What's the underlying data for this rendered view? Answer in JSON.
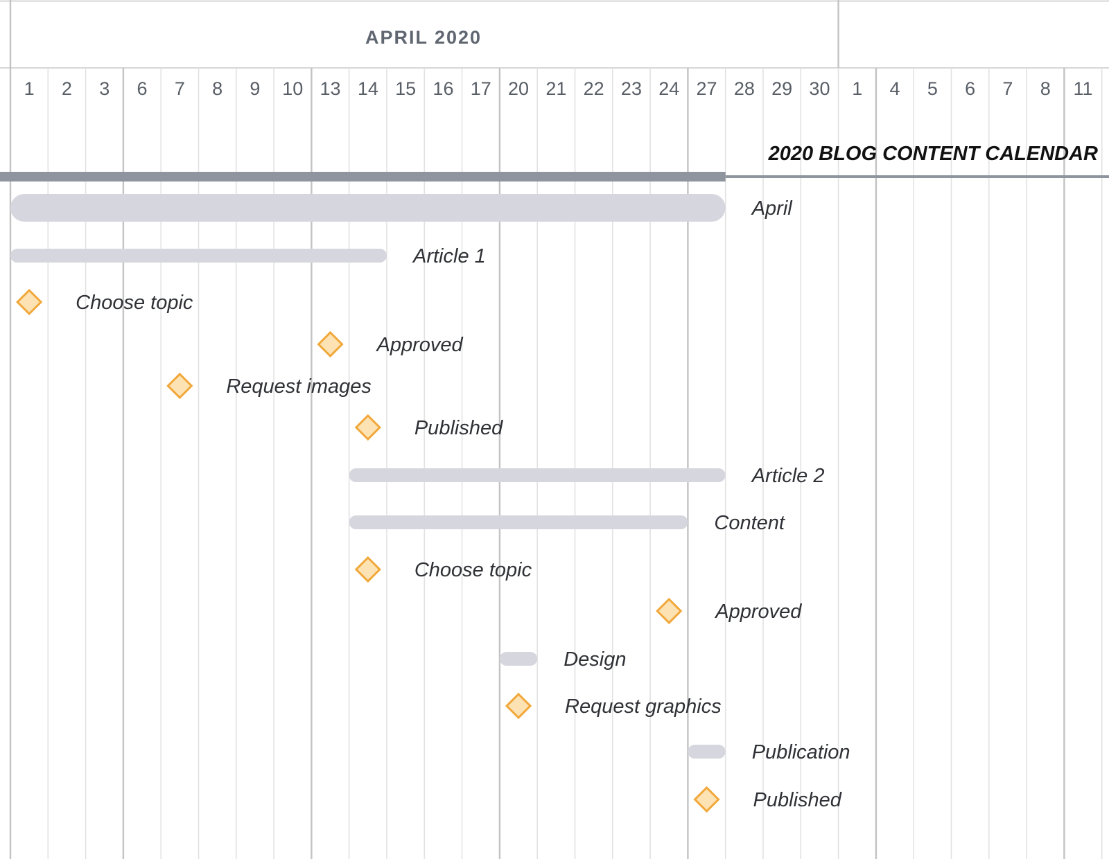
{
  "chart_data": {
    "type": "gantt",
    "title": "2020 BLOG CONTENT CALENDAR",
    "timeline": {
      "month_header": "APRIL 2020",
      "day_ticks": [
        "1",
        "2",
        "3",
        "6",
        "7",
        "8",
        "9",
        "10",
        "13",
        "14",
        "15",
        "16",
        "17",
        "20",
        "21",
        "22",
        "23",
        "24",
        "27",
        "28",
        "29",
        "30",
        "1",
        "4",
        "5",
        "6",
        "7",
        "8",
        "11"
      ],
      "week_starts": [
        "2020-04-06",
        "2020-04-13",
        "2020-04-20",
        "2020-04-27",
        "2020-05-04",
        "2020-05-11"
      ],
      "range": [
        "2020-04-01",
        "2020-05-11"
      ]
    },
    "summary": {
      "start": "2020-04-01",
      "end": "2020-04-28"
    },
    "tasks": [
      {
        "label": "April",
        "kind": "group",
        "start": "2020-04-01",
        "end": "2020-04-28"
      },
      {
        "label": "Article 1",
        "kind": "task",
        "start": "2020-04-01",
        "end": "2020-04-15"
      },
      {
        "label": "Choose topic",
        "kind": "milestone",
        "date": "2020-04-01"
      },
      {
        "label": "Approved",
        "kind": "milestone",
        "date": "2020-04-13"
      },
      {
        "label": "Request images",
        "kind": "milestone",
        "date": "2020-04-07"
      },
      {
        "label": "Published",
        "kind": "milestone",
        "date": "2020-04-14"
      },
      {
        "label": "Article 2",
        "kind": "task",
        "start": "2020-04-14",
        "end": "2020-04-28"
      },
      {
        "label": "Content",
        "kind": "task",
        "start": "2020-04-14",
        "end": "2020-04-27"
      },
      {
        "label": "Choose topic",
        "kind": "milestone",
        "date": "2020-04-14"
      },
      {
        "label": "Approved",
        "kind": "milestone",
        "date": "2020-04-24"
      },
      {
        "label": "Design",
        "kind": "task",
        "start": "2020-04-20",
        "end": "2020-04-21"
      },
      {
        "label": "Request graphics",
        "kind": "milestone",
        "date": "2020-04-20"
      },
      {
        "label": "Publication",
        "kind": "task",
        "start": "2020-04-27",
        "end": "2020-04-28"
      },
      {
        "label": "Published",
        "kind": "milestone",
        "date": "2020-04-27"
      }
    ],
    "colors": {
      "bar": "#d6d7de",
      "summary_bar": "#8e959e",
      "milestone_fill": "#fde3b3",
      "milestone_stroke": "#f1a73a",
      "grid": "#e2e2e2",
      "week_grid": "#c3c3c3"
    }
  }
}
